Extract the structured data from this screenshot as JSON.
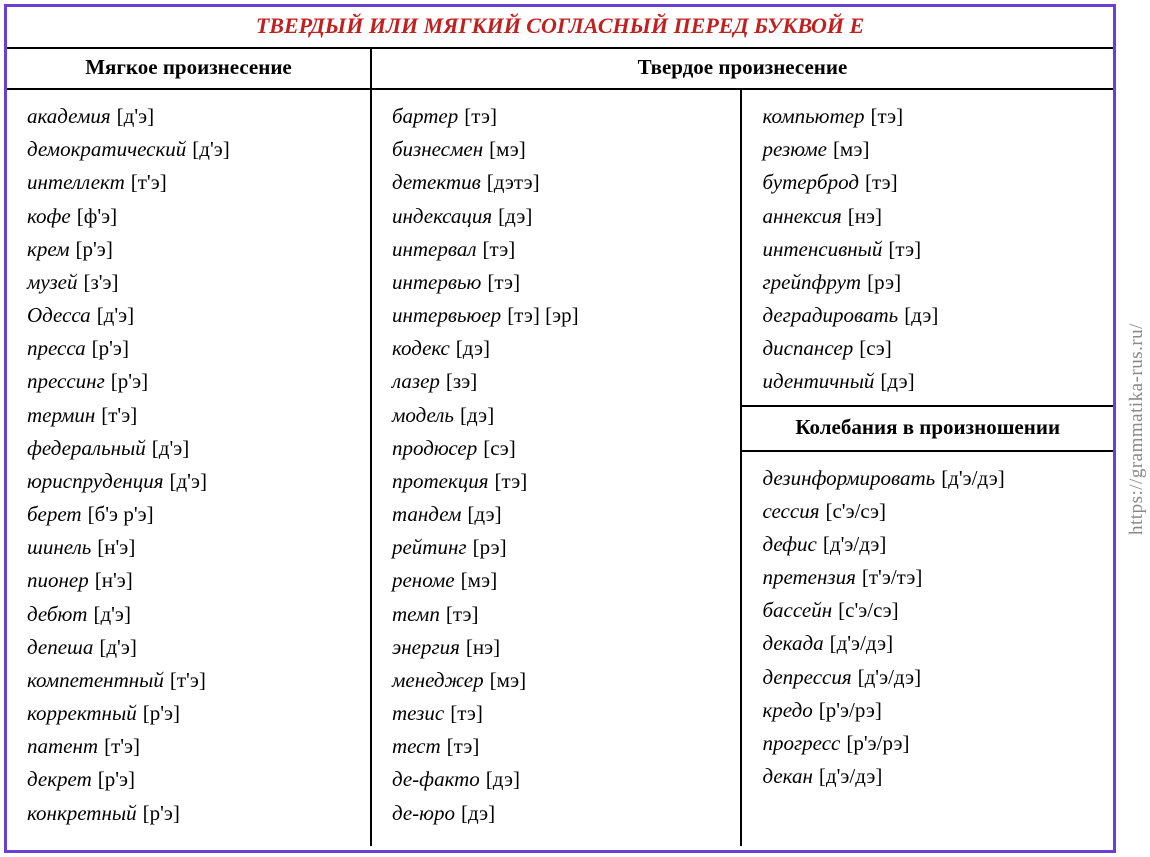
{
  "colors": {
    "border": "#6a3fd6",
    "title": "#c02020",
    "text": "#000000",
    "watermark": "#8a8a8a",
    "background": "#ffffff"
  },
  "title": "ТВЕРДЫЙ ИЛИ МЯГКИЙ СОГЛАСНЫЙ ПЕРЕД БУКВОЙ  Е",
  "header_soft": "Мягкое произнесение",
  "header_hard": "Твердое произнесение",
  "header_fluct": "Колебания в произношении",
  "watermark": "https://grammatika-rus.ru/",
  "soft": [
    {
      "w": "академия",
      "t": "[д'э]"
    },
    {
      "w": "демократический",
      "t": "[д'э]"
    },
    {
      "w": "интеллект",
      "t": "[т'э]"
    },
    {
      "w": "кофе",
      "t": "[ф'э]"
    },
    {
      "w": "крем",
      "t": "[р'э]"
    },
    {
      "w": "музей",
      "t": "[з'э]"
    },
    {
      "w": "Одесса",
      "t": "[д'э]"
    },
    {
      "w": "пресса",
      "t": "[р'э]"
    },
    {
      "w": "прессинг",
      "t": "[р'э]"
    },
    {
      "w": "термин",
      "t": "[т'э]"
    },
    {
      "w": "федеральный",
      "t": "[д'э]"
    },
    {
      "w": "юриспруденция",
      "t": "[д'э]"
    },
    {
      "w": "берет",
      "t": "[б'э р'э]"
    },
    {
      "w": "шинель",
      "t": "[н'э]"
    },
    {
      "w": "пионер",
      "t": "[н'э]"
    },
    {
      "w": "дебют",
      "t": "[д'э]"
    },
    {
      "w": "депеша",
      "t": "[д'э]"
    },
    {
      "w": "компетентный",
      "t": "[т'э]"
    },
    {
      "w": "корректный",
      "t": "[р'э]"
    },
    {
      "w": "патент",
      "t": "[т'э]"
    },
    {
      "w": "декрет",
      "t": "[р'э]"
    },
    {
      "w": "конкретный",
      "t": "[р'э]"
    }
  ],
  "hard_left": [
    {
      "w": "бартер",
      "t": "[тэ]"
    },
    {
      "w": "бизнесмен",
      "t": "[мэ]"
    },
    {
      "w": "детектив",
      "t": "[дэтэ]"
    },
    {
      "w": "индексация",
      "t": "[дэ]"
    },
    {
      "w": "интервал",
      "t": "[тэ]"
    },
    {
      "w": "интервью",
      "t": "[тэ]"
    },
    {
      "w": "интервьюер",
      "t": "[тэ] [эр]"
    },
    {
      "w": "кодекс",
      "t": "[дэ]"
    },
    {
      "w": "лазер",
      "t": "[зэ]"
    },
    {
      "w": "модель",
      "t": "[дэ]"
    },
    {
      "w": "продюсер",
      "t": "[сэ]"
    },
    {
      "w": "протекция",
      "t": "[тэ]"
    },
    {
      "w": "тандем",
      "t": "[дэ]"
    },
    {
      "w": "рейтинг",
      "t": "[рэ]"
    },
    {
      "w": "реноме",
      "t": "[мэ]"
    },
    {
      "w": "темп",
      "t": "[тэ]"
    },
    {
      "w": "энергия",
      "t": "[нэ]"
    },
    {
      "w": "менеджер",
      "t": "[мэ]"
    },
    {
      "w": "тезис",
      "t": "[тэ]"
    },
    {
      "w": "тест",
      "t": "[тэ]"
    },
    {
      "w": "де-факто",
      "t": "[дэ]"
    },
    {
      "w": "де-юро",
      "t": "[дэ]"
    }
  ],
  "hard_right_top": [
    {
      "w": "компьютер",
      "t": "[тэ]"
    },
    {
      "w": "резюме",
      "t": "[мэ]"
    },
    {
      "w": "бутерброд",
      "t": "[тэ]"
    },
    {
      "w": "аннексия",
      "t": "[нэ]"
    },
    {
      "w": "интенсивный",
      "t": "[тэ]"
    },
    {
      "w": "грейпфрут",
      "t": "[рэ]"
    },
    {
      "w": "деградировать",
      "t": "[дэ]"
    },
    {
      "w": "диспансер",
      "t": "[сэ]"
    },
    {
      "w": "идентичный",
      "t": "[дэ]"
    }
  ],
  "fluct": [
    {
      "w": "дезинформировать",
      "t": "[д'э/дэ]"
    },
    {
      "w": "сессия",
      "t": "[с'э/сэ]"
    },
    {
      "w": "дефис",
      "t": "[д'э/дэ]"
    },
    {
      "w": "претензия",
      "t": "[т'э/тэ]"
    },
    {
      "w": "бассейн",
      "t": "[с'э/сэ]"
    },
    {
      "w": "декада",
      "t": "[д'э/дэ]"
    },
    {
      "w": "депрессия",
      "t": "[д'э/дэ]"
    },
    {
      "w": "кредо",
      "t": "[р'э/рэ]"
    },
    {
      "w": "прогресс",
      "t": "[р'э/рэ]"
    },
    {
      "w": "декан",
      "t": "[д'э/дэ]"
    }
  ]
}
